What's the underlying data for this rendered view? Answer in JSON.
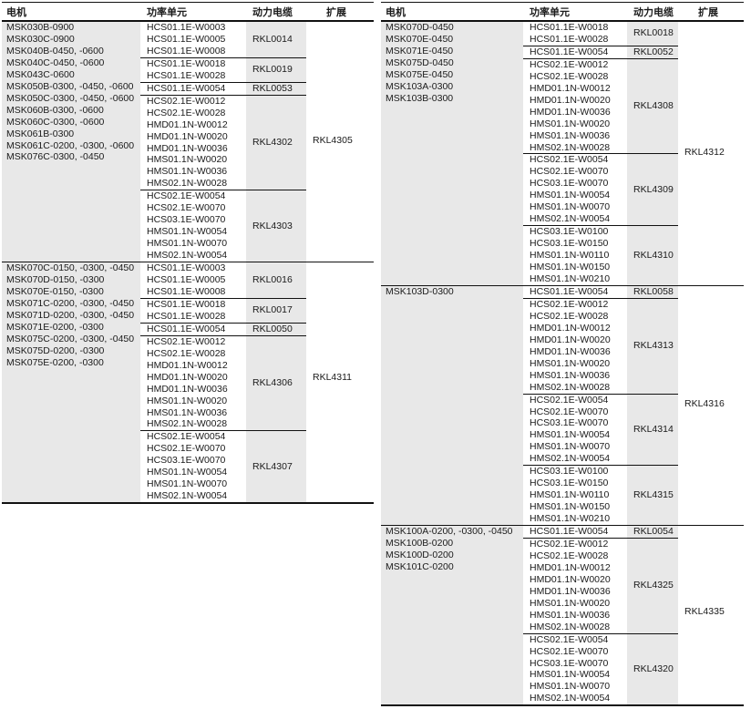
{
  "columns": {
    "motor": "电机",
    "power_unit": "功率单元",
    "power_cable": "动力电缆",
    "extension": "扩展"
  },
  "colors": {
    "shade": "#e8e8e8",
    "rule": "#111111",
    "text": "#1a1a1a"
  },
  "tables": [
    {
      "id": "left",
      "groups": [
        {
          "motors": [
            "MSK030B-0900",
            "MSK030C-0900",
            "MSK040B-0450, -0600",
            "MSK040C-0450, -0600",
            "MSK043C-0600",
            "MSK050B-0300, -0450, -0600",
            "MSK050C-0300, -0450, -0600",
            "MSK060B-0300, -0600",
            "MSK060C-0300, -0600",
            "MSK061B-0300",
            "MSK061C-0200, -0300, -0600",
            "MSK076C-0300, -0450"
          ],
          "subgroups": [
            {
              "power_units": [
                "HCS01.1E-W0003",
                "HCS01.1E-W0005",
                "HCS01.1E-W0008"
              ],
              "cable": "RKL0014"
            },
            {
              "power_units": [
                "HCS01.1E-W0018",
                "HCS01.1E-W0028"
              ],
              "cable": "RKL0019"
            },
            {
              "power_units": [
                "HCS01.1E-W0054"
              ],
              "cable": "RKL0053"
            },
            {
              "power_units": [
                "HCS02.1E-W0012",
                "HCS02.1E-W0028",
                "HMD01.1N-W0012",
                "HMD01.1N-W0020",
                "HMD01.1N-W0036",
                "HMS01.1N-W0020",
                "HMS01.1N-W0036",
                "HMS02.1N-W0028"
              ],
              "cable": "RKL4302"
            },
            {
              "power_units": [
                "HCS02.1E-W0054",
                "HCS02.1E-W0070",
                "HCS03.1E-W0070",
                "HMS01.1N-W0054",
                "HMS01.1N-W0070",
                "HMS02.1N-W0054"
              ],
              "cable": "RKL4303"
            }
          ],
          "extension": "RKL4305"
        },
        {
          "motors": [
            "MSK070C-0150, -0300, -0450",
            "MSK070D-0150, -0300",
            "MSK070E-0150, -0300",
            "MSK071C-0200, -0300, -0450",
            "MSK071D-0200, -0300, -0450",
            "MSK071E-0200, -0300",
            "MSK075C-0200, -0300, -0450",
            "MSK075D-0200, -0300",
            "MSK075E-0200, -0300"
          ],
          "subgroups": [
            {
              "power_units": [
                "HCS01.1E-W0003",
                "HCS01.1E-W0005",
                "HCS01.1E-W0008"
              ],
              "cable": "RKL0016"
            },
            {
              "power_units": [
                "HCS01.1E-W0018",
                "HCS01.1E-W0028"
              ],
              "cable": "RKL0017"
            },
            {
              "power_units": [
                "HCS01.1E-W0054"
              ],
              "cable": "RKL0050"
            },
            {
              "power_units": [
                "HCS02.1E-W0012",
                "HCS02.1E-W0028",
                "HMD01.1N-W0012",
                "HMD01.1N-W0020",
                "HMD01.1N-W0036",
                "HMS01.1N-W0020",
                "HMS01.1N-W0036",
                "HMS02.1N-W0028"
              ],
              "cable": "RKL4306"
            },
            {
              "power_units": [
                "HCS02.1E-W0054",
                "HCS02.1E-W0070",
                "HCS03.1E-W0070",
                "HMS01.1N-W0054",
                "HMS01.1N-W0070",
                "HMS02.1N-W0054"
              ],
              "cable": "RKL4307"
            }
          ],
          "extension": "RKL4311"
        }
      ]
    },
    {
      "id": "right",
      "groups": [
        {
          "motors": [
            "MSK070D-0450",
            "MSK070E-0450",
            "MSK071E-0450",
            "MSK075D-0450",
            "MSK075E-0450",
            "MSK103A-0300",
            "MSK103B-0300"
          ],
          "subgroups": [
            {
              "power_units": [
                "HCS01.1E-W0018",
                "HCS01.1E-W0028"
              ],
              "cable": "RKL0018"
            },
            {
              "power_units": [
                "HCS01.1E-W0054"
              ],
              "cable": "RKL0052"
            },
            {
              "power_units": [
                "HCS02.1E-W0012",
                "HCS02.1E-W0028",
                "HMD01.1N-W0012",
                "HMD01.1N-W0020",
                "HMD01.1N-W0036",
                "HMS01.1N-W0020",
                "HMS01.1N-W0036",
                "HMS02.1N-W0028"
              ],
              "cable": "RKL4308"
            },
            {
              "power_units": [
                "HCS02.1E-W0054",
                "HCS02.1E-W0070",
                "HCS03.1E-W0070",
                "HMS01.1N-W0054",
                "HMS01.1N-W0070",
                "HMS02.1N-W0054"
              ],
              "cable": "RKL4309"
            },
            {
              "power_units": [
                "HCS03.1E-W0100",
                "HCS03.1E-W0150",
                "HMS01.1N-W0110",
                "HMS01.1N-W0150",
                "HMS01.1N-W0210"
              ],
              "cable": "RKL4310"
            }
          ],
          "extension": "RKL4312"
        },
        {
          "motors": [
            "MSK103D-0300"
          ],
          "subgroups": [
            {
              "power_units": [
                "HCS01.1E-W0054"
              ],
              "cable": "RKL0058"
            },
            {
              "power_units": [
                "HCS02.1E-W0012",
                "HCS02.1E-W0028",
                "HMD01.1N-W0012",
                "HMD01.1N-W0020",
                "HMD01.1N-W0036",
                "HMS01.1N-W0020",
                "HMS01.1N-W0036",
                "HMS02.1N-W0028"
              ],
              "cable": "RKL4313"
            },
            {
              "power_units": [
                "HCS02.1E-W0054",
                "HCS02.1E-W0070",
                "HCS03.1E-W0070",
                "HMS01.1N-W0054",
                "HMS01.1N-W0070",
                "HMS02.1N-W0054"
              ],
              "cable": "RKL4314"
            },
            {
              "power_units": [
                "HCS03.1E-W0100",
                "HCS03.1E-W0150",
                "HMS01.1N-W0110",
                "HMS01.1N-W0150",
                "HMS01.1N-W0210"
              ],
              "cable": "RKL4315"
            }
          ],
          "extension": "RKL4316"
        },
        {
          "motors": [
            "MSK100A-0200, -0300, -0450",
            "MSK100B-0200",
            "MSK100D-0200",
            "MSK101C-0200"
          ],
          "subgroups": [
            {
              "power_units": [
                "HCS01.1E-W0054"
              ],
              "cable": "RKL0054"
            },
            {
              "power_units": [
                "HCS02.1E-W0012",
                "HCS02.1E-W0028",
                "HMD01.1N-W0012",
                "HMD01.1N-W0020",
                "HMD01.1N-W0036",
                "HMS01.1N-W0020",
                "HMS01.1N-W0036",
                "HMS02.1N-W0028"
              ],
              "cable": "RKL4325"
            },
            {
              "power_units": [
                "HCS02.1E-W0054",
                "HCS02.1E-W0070",
                "HCS03.1E-W0070",
                "HMS01.1N-W0054",
                "HMS01.1N-W0070",
                "HMS02.1N-W0054"
              ],
              "cable": "RKL4320"
            }
          ],
          "extension": "RKL4335"
        }
      ]
    }
  ]
}
